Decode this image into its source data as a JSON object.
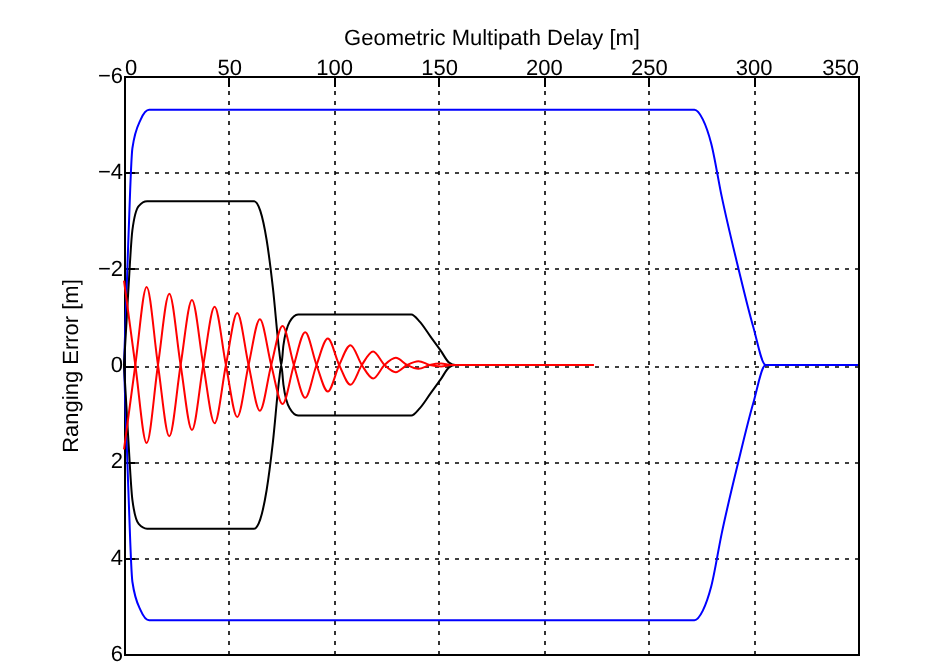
{
  "chart_data": {
    "type": "line",
    "xlabel": "Geometric Multipath Delay [m]",
    "ylabel": "Ranging Error [m]",
    "xlim": [
      0,
      350
    ],
    "xticks": [
      0,
      50,
      100,
      150,
      200,
      250,
      300,
      350
    ],
    "ylim": [
      6,
      -6
    ],
    "yticks": [
      -6,
      -4,
      -2,
      0,
      2,
      4,
      6
    ],
    "grid": true,
    "series": [
      {
        "color": "#0000ff",
        "x": [
          0,
          2,
          4,
          8,
          12,
          272,
          276,
          280,
          285,
          293,
          300,
          306,
          350
        ],
        "values": [
          0,
          -2.5,
          -4.5,
          -5.1,
          -5.3,
          -5.3,
          -5.1,
          -4.6,
          -3.5,
          -2,
          -0.8,
          0,
          0
        ]
      },
      {
        "color": "#0000ff",
        "x": [
          0,
          2,
          4,
          8,
          12,
          272,
          276,
          280,
          285,
          293,
          300,
          306,
          350
        ],
        "values": [
          0,
          2.5,
          4.5,
          5.1,
          5.3,
          5.3,
          5.1,
          4.6,
          3.5,
          2,
          0.8,
          0,
          0
        ]
      },
      {
        "color": "#000000",
        "x": [
          0,
          2,
          4,
          7,
          11,
          62,
          65,
          68,
          71,
          74,
          75,
          76,
          79,
          83,
          137,
          141,
          146,
          151,
          155,
          158,
          167
        ],
        "values": [
          0,
          -1.5,
          -2.8,
          -3.3,
          -3.4,
          -3.4,
          -3.2,
          -2.6,
          -1.6,
          -0.3,
          0,
          -0.4,
          -0.9,
          -1.05,
          -1.05,
          -0.9,
          -0.6,
          -0.3,
          -0.05,
          0,
          0
        ]
      },
      {
        "color": "#000000",
        "x": [
          0,
          2,
          4,
          7,
          11,
          62,
          65,
          68,
          71,
          74,
          75,
          76,
          79,
          83,
          137,
          141,
          146,
          151,
          155,
          158,
          167
        ],
        "values": [
          0,
          1.5,
          2.8,
          3.3,
          3.4,
          3.4,
          3.2,
          2.6,
          1.6,
          0.3,
          0,
          0.4,
          0.9,
          1.05,
          1.05,
          0.9,
          0.6,
          0.3,
          0.05,
          0,
          0
        ]
      },
      {
        "color": "#ff0000",
        "x": [
          0,
          5.4,
          10.8,
          16.2,
          21.6,
          27,
          32.4,
          37.8,
          43.2,
          48.6,
          54,
          59.4,
          64.8,
          70.2,
          75.6,
          81,
          86.4,
          91.8,
          97.2,
          102.6,
          108,
          113.4,
          118.8,
          124.2,
          129.6,
          135,
          140.4,
          145.8,
          151.2,
          156,
          224
        ],
        "values": [
          -1.75,
          0,
          1.62,
          0,
          -1.48,
          0,
          1.35,
          0,
          -1.21,
          0,
          1.08,
          0,
          -0.95,
          0,
          0.81,
          0,
          -0.68,
          0,
          0.55,
          0,
          -0.41,
          0,
          0.28,
          0,
          -0.15,
          0,
          0.08,
          0,
          -0.03,
          0,
          0
        ]
      },
      {
        "color": "#ff0000",
        "x": [
          0,
          5.4,
          10.8,
          16.2,
          21.6,
          27,
          32.4,
          37.8,
          43.2,
          48.6,
          54,
          59.4,
          64.8,
          70.2,
          75.6,
          81,
          86.4,
          91.8,
          97.2,
          102.6,
          108,
          113.4,
          118.8,
          124.2,
          129.6,
          135,
          140.4,
          145.8,
          151.2,
          156,
          224
        ],
        "values": [
          1.75,
          0,
          -1.62,
          0,
          1.48,
          0,
          -1.35,
          0,
          1.21,
          0,
          -1.08,
          0,
          0.95,
          0,
          -0.81,
          0,
          0.68,
          0,
          -0.55,
          0,
          0.41,
          0,
          -0.28,
          0,
          0.15,
          0,
          -0.08,
          0,
          0.03,
          0,
          0
        ]
      }
    ]
  }
}
